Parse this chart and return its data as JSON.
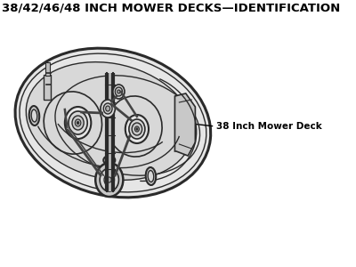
{
  "title": "38/42/46/48 INCH MOWER DECKS—IDENTIFICATION",
  "title_fontsize": 9.5,
  "title_fontweight": "bold",
  "annotation_label": "38 Inch Mower Deck",
  "annotation_fontsize": 7.5,
  "bg_color": "#ffffff",
  "line_color": "#2a2a2a",
  "belt_color": "#444444",
  "fill_light": "#e6e6e6",
  "fill_mid": "#d8d8d8",
  "fill_dark": "#c8c8c8",
  "figure_width": 4.0,
  "figure_height": 3.0,
  "dpi": 100
}
